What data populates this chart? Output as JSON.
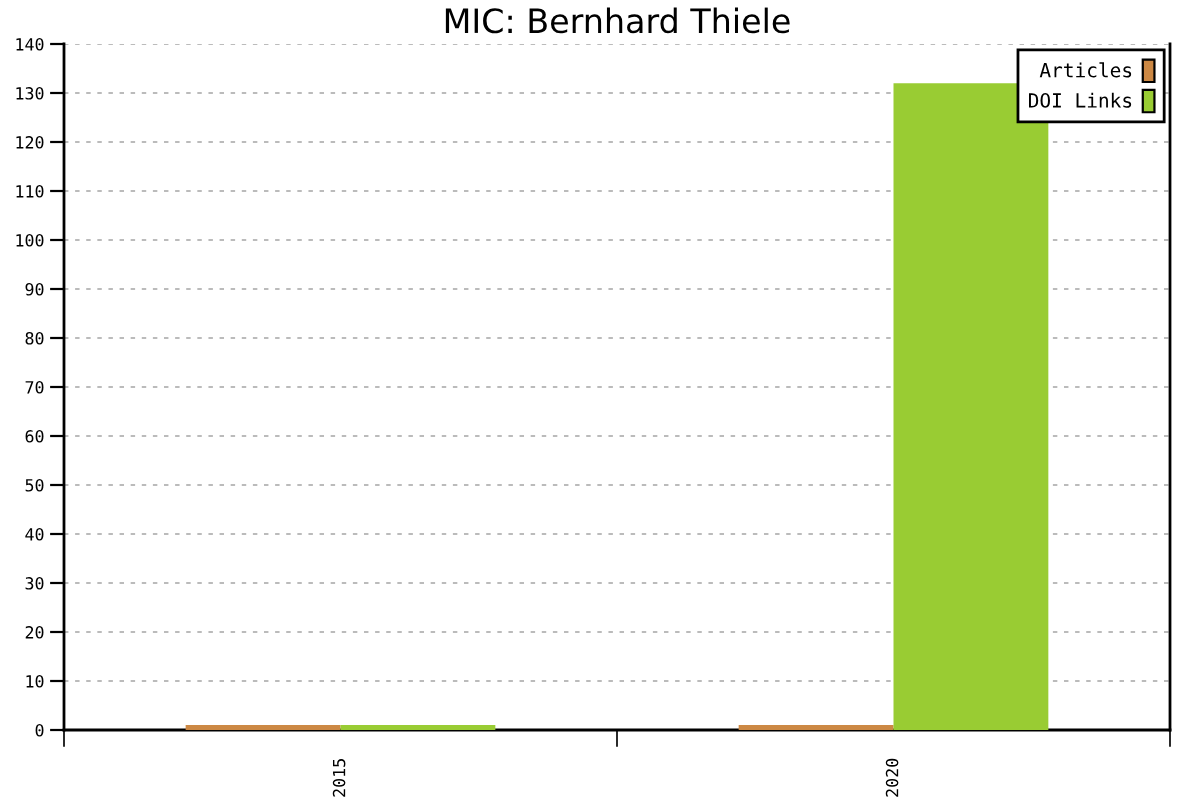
{
  "chart_data": {
    "type": "bar",
    "title": "MIC: Bernhard Thiele",
    "categories": [
      "2015",
      "2020"
    ],
    "series": [
      {
        "name": "Articles",
        "color": "#cc8844",
        "values": [
          1,
          1
        ]
      },
      {
        "name": "DOI Links",
        "color": "#99cc33",
        "values": [
          1,
          132
        ]
      }
    ],
    "ylim": [
      0,
      140
    ],
    "yticks": [
      0,
      10,
      20,
      30,
      40,
      50,
      60,
      70,
      80,
      90,
      100,
      110,
      120,
      130,
      140
    ],
    "grid": "y",
    "legend": "top right"
  }
}
